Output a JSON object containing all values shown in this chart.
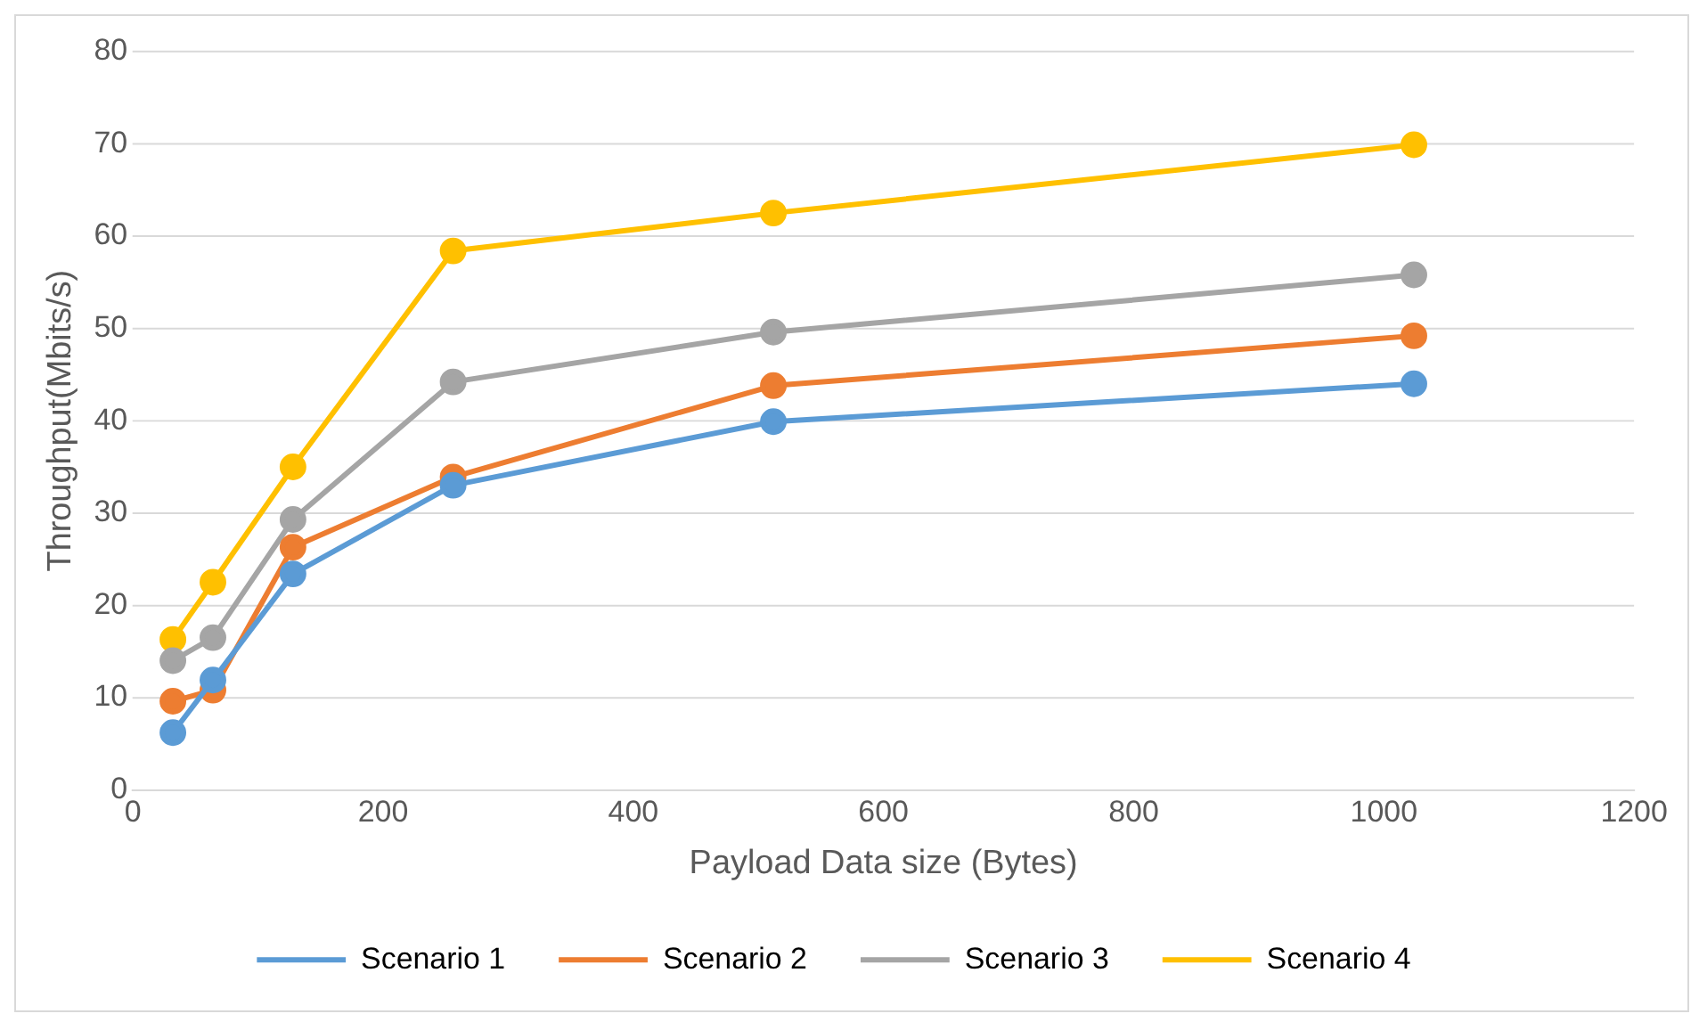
{
  "chart_data": {
    "type": "line",
    "xlabel": "Payload Data size (Bytes)",
    "ylabel": "Throughput(Mbits/s)",
    "x": [
      32,
      64,
      128,
      256,
      512,
      1024
    ],
    "series": [
      {
        "name": "Scenario 1",
        "color": "#5b9bd5",
        "values": [
          6.2,
          11.9,
          23.4,
          33,
          39.9,
          44
        ]
      },
      {
        "name": "Scenario 2",
        "color": "#ed7d31",
        "values": [
          9.6,
          10.8,
          26.3,
          33.9,
          43.8,
          49.2
        ]
      },
      {
        "name": "Scenario 3",
        "color": "#a5a5a5",
        "values": [
          14,
          16.5,
          29.3,
          44.2,
          49.6,
          55.8
        ]
      },
      {
        "name": "Scenario 4",
        "color": "#ffc000",
        "values": [
          16.3,
          22.5,
          35,
          58.4,
          62.5,
          69.9
        ]
      }
    ],
    "xlim": [
      0,
      1200
    ],
    "xticks": [
      0,
      200,
      400,
      600,
      800,
      1000,
      1200
    ],
    "ylim": [
      0,
      80
    ],
    "yticks": [
      0,
      10,
      20,
      30,
      40,
      50,
      60,
      70,
      80
    ],
    "grid": "y",
    "legend": "bottom",
    "marker": "circle",
    "line_style": "solid"
  }
}
